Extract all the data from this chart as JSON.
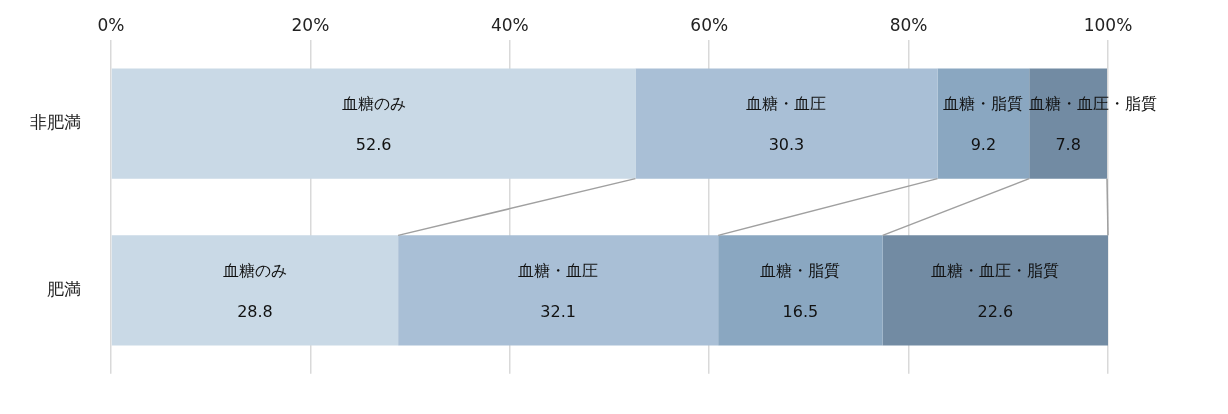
{
  "chart_data": {
    "type": "bar",
    "orientation": "horizontal",
    "stacked": true,
    "categories": [
      "非肥満",
      "肥満"
    ],
    "series": [
      {
        "name": "血糖のみ",
        "color": "#c9d9e6",
        "values": [
          52.6,
          28.8
        ]
      },
      {
        "name": "血糖・血圧",
        "color": "#a9bfd6",
        "values": [
          30.3,
          32.1
        ]
      },
      {
        "name": "血糖・脂質",
        "color": "#8aa7c1",
        "values": [
          9.2,
          16.5
        ]
      },
      {
        "name": "血糖・血圧・脂質",
        "color": "#728ba3",
        "values": [
          7.8,
          22.6
        ]
      }
    ],
    "xlim": [
      0,
      100
    ],
    "xticks": [
      {
        "value": 0,
        "label": "0%"
      },
      {
        "value": 20,
        "label": "20%"
      },
      {
        "value": 40,
        "label": "40%"
      },
      {
        "value": 60,
        "label": "60%"
      },
      {
        "value": 80,
        "label": "80%"
      },
      {
        "value": 100,
        "label": "100%"
      }
    ],
    "grid": "x",
    "legend": false,
    "data_labels": true
  }
}
